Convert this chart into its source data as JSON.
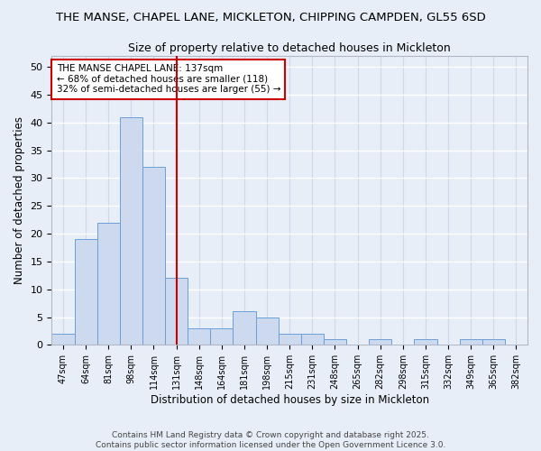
{
  "title_line1": "THE MANSE, CHAPEL LANE, MICKLETON, CHIPPING CAMPDEN, GL55 6SD",
  "title_line2": "Size of property relative to detached houses in Mickleton",
  "xlabel": "Distribution of detached houses by size in Mickleton",
  "ylabel": "Number of detached properties",
  "categories": [
    "47sqm",
    "64sqm",
    "81sqm",
    "98sqm",
    "114sqm",
    "131sqm",
    "148sqm",
    "164sqm",
    "181sqm",
    "198sqm",
    "215sqm",
    "231sqm",
    "248sqm",
    "265sqm",
    "282sqm",
    "298sqm",
    "315sqm",
    "332sqm",
    "349sqm",
    "365sqm",
    "382sqm"
  ],
  "values": [
    2,
    19,
    22,
    41,
    32,
    12,
    3,
    3,
    6,
    5,
    2,
    2,
    1,
    0,
    1,
    0,
    1,
    0,
    1,
    1,
    0
  ],
  "bar_color": "#cdd9ee",
  "bar_edge_color": "#6a9fd8",
  "vline_x_index": 5.0,
  "vline_color": "#cc0000",
  "annotation_title": "THE MANSE CHAPEL LANE: 137sqm",
  "annotation_line1": "← 68% of detached houses are smaller (118)",
  "annotation_line2": "32% of semi-detached houses are larger (55) →",
  "annotation_box_color": "#ffffff",
  "annotation_box_edge_color": "#cc0000",
  "ylim": [
    0,
    52
  ],
  "yticks": [
    0,
    5,
    10,
    15,
    20,
    25,
    30,
    35,
    40,
    45,
    50
  ],
  "bg_color": "#e8eef8",
  "grid_color": "#d0d8e8",
  "footer_line1": "Contains HM Land Registry data © Crown copyright and database right 2025.",
  "footer_line2": "Contains public sector information licensed under the Open Government Licence 3.0.",
  "title_fontsize": 9.5,
  "subtitle_fontsize": 9
}
